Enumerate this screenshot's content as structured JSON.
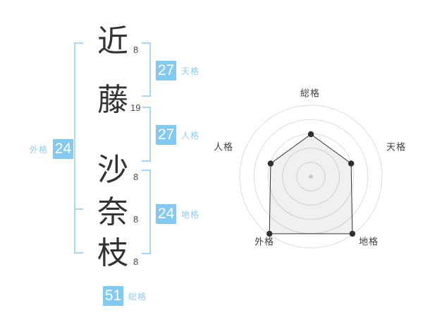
{
  "colors": {
    "accent_blue": "#84c9ef",
    "bracket_blue": "#a6d8f4",
    "label_blue": "#8fcbf0",
    "text_dark": "#333333",
    "ring_gray": "#dcdcdc",
    "polygon_stroke": "#2f2f2f",
    "polygon_fill": "rgba(0,0,0,0.06)",
    "center_dot_gray": "#c8c8c8"
  },
  "name_chart": {
    "characters": [
      {
        "char": "近",
        "strokes": "8"
      },
      {
        "char": "藤",
        "strokes": "19"
      },
      {
        "char": "沙",
        "strokes": "8"
      },
      {
        "char": "奈",
        "strokes": "8"
      },
      {
        "char": "枝",
        "strokes": "8"
      }
    ],
    "results": {
      "tenkaku": {
        "label": "天格",
        "value": "27"
      },
      "jinkaku": {
        "label": "人格",
        "value": "27"
      },
      "chikaku": {
        "label": "地格",
        "value": "24"
      },
      "gaikaku": {
        "label": "外格",
        "value": "24"
      },
      "soukaku": {
        "label": "総格",
        "value": "51"
      }
    }
  },
  "chart_data": {
    "type": "radar",
    "categories": [
      "総格",
      "天格",
      "地格",
      "外格",
      "人格"
    ],
    "values": [
      3,
      3,
      5,
      5,
      3
    ],
    "max": 5,
    "rings": 5,
    "legend": "none",
    "grid": "concentric-circles",
    "axis_scores": {
      "総格": {
        "kakusu": 51,
        "score": 3
      },
      "天格": {
        "kakusu": 27,
        "score": 3
      },
      "地格": {
        "kakusu": 24,
        "score": 5
      },
      "外格": {
        "kakusu": 24,
        "score": 5
      },
      "人格": {
        "kakusu": 27,
        "score": 3
      }
    }
  }
}
